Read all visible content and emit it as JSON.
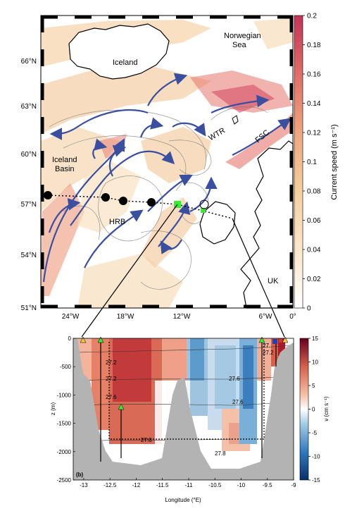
{
  "chart_data": [
    {
      "panel": "a",
      "type": "heatmap",
      "colorbar": {
        "label": "Current speed (m s⁻¹)",
        "range": [
          0,
          0.2
        ],
        "ticks": [
          "0",
          "0.02",
          "0.04",
          "0.06",
          "0.08",
          "0.1",
          "0.12",
          "0.14",
          "0.16",
          "0.18",
          "0.2"
        ],
        "colors": [
          "#ffffff",
          "#fbe6c6",
          "#f6c893",
          "#ef9a72",
          "#dd5560",
          "#c43355"
        ]
      },
      "y_ticks": [
        "66°N",
        "63°N",
        "60°N",
        "57°N",
        "54°N",
        "51°N"
      ],
      "x_ticks": [
        "24°W",
        "18°W",
        "12°W",
        "6°W",
        "0°"
      ],
      "labels": {
        "iceland": "Iceland",
        "norwegian": "Norwegian",
        "sea": "Sea",
        "iceland_basin_1": "Iceland",
        "iceland_basin_2": "Basin",
        "hrb": "HRB",
        "wtr": "WTR",
        "fsc": "FSC",
        "uk": "UK"
      },
      "markers": {
        "station_color": "#000000",
        "highlight_color": "#33ee33"
      }
    },
    {
      "panel": "b",
      "type": "heatmap",
      "panel_label": "(b)",
      "xlabel": "Longitude (°E)",
      "ylabel": "z (m)",
      "x_ticks": [
        "-13",
        "-12.5",
        "-12",
        "-11.5",
        "-11",
        "-10.5",
        "-10",
        "-9.5",
        "-9"
      ],
      "y_ticks": [
        "0",
        "-500",
        "-1000",
        "-1500",
        "-2000",
        "-2500"
      ],
      "xlim": [
        -13.2,
        -9
      ],
      "ylim": [
        -2500,
        0
      ],
      "contour_labels": [
        "27.2",
        "27.4",
        "27.6",
        "27.8",
        "27",
        "27.2",
        "27.4",
        "27.6",
        "27.8"
      ],
      "colorbar": {
        "label": "v (cm s⁻¹)",
        "range": [
          -15,
          15
        ],
        "ticks": [
          "15",
          "10",
          "5",
          "0",
          "-5",
          "-10",
          "-15"
        ]
      },
      "colors": {
        "strong_north": "#b2182b",
        "north": "#e07a5f",
        "weak_north": "#f6c4ac",
        "weak_south": "#cfe0ee",
        "south": "#7fb2d8",
        "strong_south": "#2166ac",
        "topography": "#b3b3b3"
      }
    }
  ]
}
